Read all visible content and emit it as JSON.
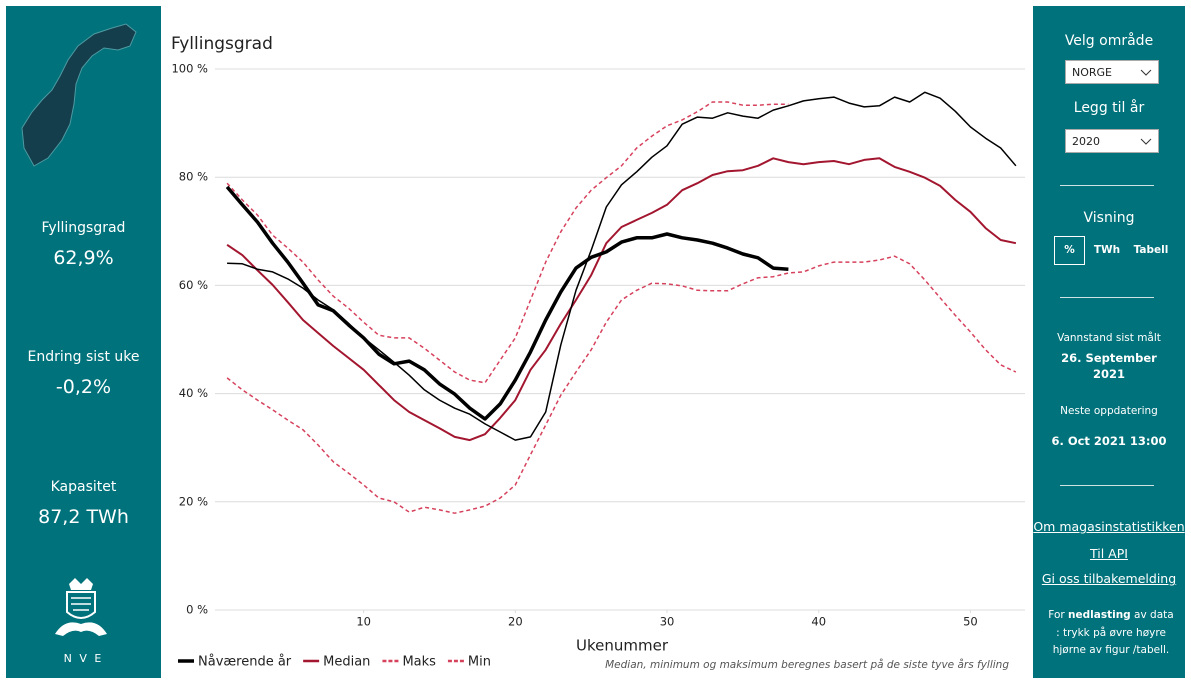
{
  "left_panel": {
    "stats": [
      {
        "label": "Fyllingsgrad",
        "value": "62,9%"
      },
      {
        "label": "Endring sist uke",
        "value": "-0,2%"
      },
      {
        "label": "Kapasitet",
        "value": "87,2 TWh"
      }
    ],
    "logo_text": "N V E"
  },
  "right_panel": {
    "area_label": "Velg område",
    "area_value": "NORGE",
    "year_label": "Legg til år",
    "year_value": "2020",
    "view_label": "Visning",
    "view_options": [
      "%",
      "TWh",
      "Tabell"
    ],
    "measured_label": "Vannstand sist målt",
    "measured_date": [
      "26. September",
      "2021"
    ],
    "next_label": "Neste oppdatering",
    "next_date": "6. Oct 2021 13:00",
    "links": [
      "Om magasinstatistikken",
      "Til API",
      "Gi oss tilbakemelding"
    ],
    "note": [
      "For ",
      "nedlasting",
      " av data : trykk på øvre høyre hjørne av figur /tabell."
    ]
  },
  "chart_data": {
    "type": "line",
    "title": "Fyllingsgrad",
    "x_label": "Ukenummer",
    "footnote": "Median, minimum og maksimum beregnes basert på de siste tyve års fylling",
    "x": [
      1,
      2,
      3,
      4,
      5,
      6,
      7,
      8,
      9,
      10,
      11,
      12,
      13,
      14,
      15,
      16,
      17,
      18,
      19,
      20,
      21,
      22,
      23,
      24,
      25,
      26,
      27,
      28,
      29,
      30,
      31,
      32,
      33,
      34,
      35,
      36,
      37,
      38,
      39,
      40,
      41,
      42,
      43,
      44,
      45,
      46,
      47,
      48,
      49,
      50,
      51,
      52,
      53
    ],
    "xlim": [
      0.2,
      53.6
    ],
    "xticks": [
      10,
      20,
      30,
      40,
      50
    ],
    "ylim": [
      0,
      100
    ],
    "yticks": [
      {
        "value": 0,
        "label": "0 %"
      },
      {
        "value": 20,
        "label": "20 %"
      },
      {
        "value": 40,
        "label": "40 %"
      },
      {
        "value": 60,
        "label": "60 %"
      },
      {
        "value": 80,
        "label": "80 %"
      },
      {
        "value": 100,
        "label": "100 %"
      }
    ],
    "grid": true,
    "series": [
      {
        "name": "Min",
        "color": "#d6415c",
        "dashed": true,
        "width": 1.5,
        "values": [
          42.9,
          40.7,
          38.8,
          37.0,
          35.1,
          33.3,
          30.5,
          27.4,
          25.3,
          23.1,
          20.7,
          20.0,
          18.1,
          19.0,
          18.5,
          17.9,
          18.5,
          19.2,
          20.7,
          23.1,
          28.7,
          34.2,
          39.7,
          44.0,
          48.1,
          53.2,
          57.3,
          59.1,
          60.4,
          60.3,
          59.9,
          59.1,
          59.0,
          59.0,
          60.3,
          61.4,
          61.6,
          62.3,
          62.5,
          63.6,
          64.3,
          64.3,
          64.3,
          64.7,
          65.4,
          64.0,
          61.0,
          57.7,
          54.5,
          51.4,
          48.1,
          45.3,
          44.0
        ]
      },
      {
        "name": "Maks",
        "color": "#d6415c",
        "dashed": true,
        "width": 1.5,
        "values": [
          78.9,
          75.8,
          73.0,
          69.3,
          66.9,
          64.3,
          61.0,
          58.0,
          55.8,
          53.2,
          50.8,
          50.3,
          50.3,
          48.4,
          46.2,
          44.0,
          42.5,
          42.0,
          46.2,
          50.3,
          57.3,
          64.3,
          69.9,
          74.3,
          77.6,
          79.9,
          82.1,
          85.4,
          87.6,
          89.5,
          90.6,
          92.1,
          93.9,
          93.9,
          93.3,
          93.3,
          93.5,
          93.5,
          null,
          null,
          null,
          null,
          null,
          null,
          null,
          null,
          null,
          null,
          null,
          null,
          null,
          null,
          null
        ]
      },
      {
        "name": "Median",
        "color": "#a3162f",
        "dashed": false,
        "width": 2,
        "values": [
          67.5,
          65.6,
          62.8,
          60.1,
          56.9,
          53.6,
          51.2,
          48.8,
          46.6,
          44.4,
          41.6,
          38.8,
          36.6,
          35.1,
          33.6,
          32.0,
          31.4,
          32.5,
          35.5,
          38.8,
          44.4,
          48.1,
          52.9,
          57.3,
          61.9,
          67.8,
          70.8,
          72.1,
          73.4,
          74.9,
          77.6,
          78.9,
          80.4,
          81.1,
          81.3,
          82.1,
          83.5,
          82.8,
          82.4,
          82.8,
          83.0,
          82.4,
          83.2,
          83.5,
          81.9,
          81.0,
          79.9,
          78.4,
          75.8,
          73.6,
          70.6,
          68.4,
          67.8
        ]
      },
      {
        "color": "#000000",
        "dashed": false,
        "width": 1.5,
        "values": [
          64.1,
          64.0,
          63.0,
          62.5,
          61.2,
          59.5,
          57.3,
          55.5,
          53.0,
          50.3,
          48.1,
          45.8,
          43.4,
          40.7,
          38.8,
          37.3,
          36.2,
          34.4,
          32.9,
          31.4,
          32.0,
          36.6,
          49.0,
          59.1,
          66.5,
          74.5,
          78.6,
          81.0,
          83.7,
          85.8,
          89.8,
          91.1,
          90.9,
          91.9,
          91.3,
          90.9,
          92.4,
          93.2,
          94.1,
          94.5,
          94.8,
          93.7,
          93.0,
          93.2,
          94.8,
          93.9,
          95.7,
          94.6,
          92.2,
          89.3,
          87.2,
          85.4,
          82.1
        ]
      },
      {
        "name": "Nåværende år",
        "color": "#000000",
        "dashed": false,
        "width": 3.5,
        "values": [
          78.2,
          74.9,
          71.7,
          67.8,
          64.3,
          60.4,
          56.4,
          55.3,
          52.7,
          50.3,
          47.3,
          45.5,
          46.0,
          44.4,
          41.8,
          39.9,
          37.3,
          35.3,
          38.1,
          42.5,
          47.7,
          53.6,
          58.8,
          63.2,
          65.2,
          66.2,
          68.0,
          68.8,
          68.8,
          69.5,
          68.8,
          68.4,
          67.8,
          66.9,
          65.8,
          65.1,
          63.2,
          63.0,
          null,
          null,
          null,
          null,
          null,
          null,
          null,
          null,
          null,
          null,
          null,
          null,
          null,
          null,
          null
        ]
      }
    ],
    "legend_order": [
      4,
      2,
      1,
      0
    ]
  }
}
